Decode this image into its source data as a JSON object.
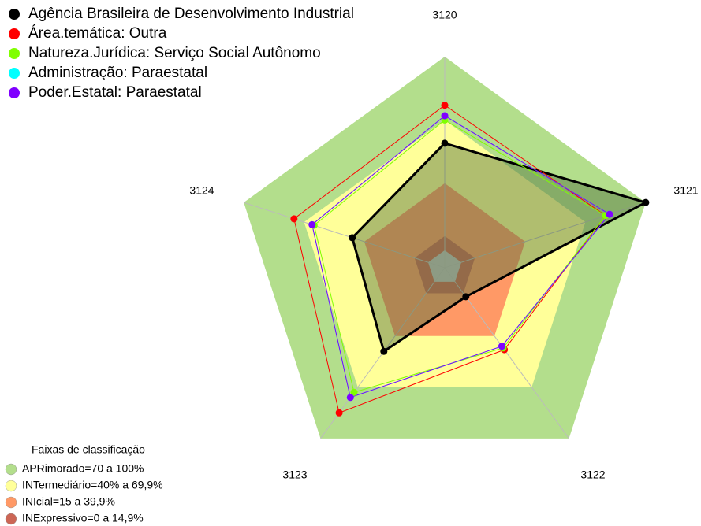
{
  "chart_data": {
    "type": "radar",
    "categories": [
      "3120",
      "3121",
      "3122",
      "3123",
      "3124"
    ],
    "rlim": [
      0,
      100
    ],
    "series": [
      {
        "name": "Agência Brasileira de Desenvolvimento Industrial",
        "color": "#000000",
        "values": [
          59,
          100,
          17,
          49,
          46
        ]
      },
      {
        "name": "Área.temática: Outra",
        "color": "#ff0000",
        "values": [
          77,
          80,
          48,
          85,
          75
        ]
      },
      {
        "name": "Natureza.Jurídica: Serviço Social Autônomo",
        "color": "#80ff00",
        "values": [
          70,
          80,
          47,
          73,
          65
        ]
      },
      {
        "name": "Administração: Paraestatal",
        "color": "#00ffff",
        "values": [
          72,
          82,
          46,
          76,
          66
        ]
      },
      {
        "name": "Poder.Estatal: Paraestatal",
        "color": "#8000ff",
        "values": [
          72,
          82,
          46,
          76,
          66
        ]
      }
    ],
    "bands_title": "Faixas de classificação",
    "bands": [
      {
        "name": "APRimorado=70 a 100%",
        "color": "#b3de8c",
        "value": 100
      },
      {
        "name": "INTermediário=40% a 69,9%",
        "color": "#ffff99",
        "value": 70
      },
      {
        "name": "INIcial=15 a 39,9%",
        "color": "#ff9966",
        "value": 40
      },
      {
        "name": "INExpressivo=0 a 14,9%",
        "color": "#cc6655",
        "value": 15
      }
    ]
  }
}
